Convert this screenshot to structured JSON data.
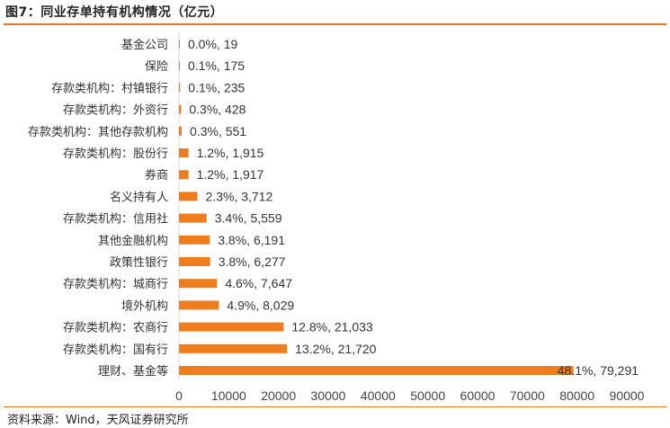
{
  "header": {
    "title": "图7：同业存单持有机构情况（亿元）"
  },
  "footer": {
    "source": "资料来源：Wind，天风证券研究所"
  },
  "chart_data": {
    "type": "bar",
    "orientation": "horizontal",
    "title": "图7：同业存单持有机构情况（亿元）",
    "categories": [
      "基金公司",
      "保险",
      "存款类机构：村镇银行",
      "存款类机构：外资行",
      "存款类机构：其他存款机构",
      "存款类机构：股份行",
      "券商",
      "名义持有人",
      "存款类机构：信用社",
      "其他金融机构",
      "政策性银行",
      "存款类机构：城商行",
      "境外机构",
      "存款类机构：农商行",
      "存款类机构：国有行",
      "理财、基金等"
    ],
    "values": [
      19,
      175,
      235,
      428,
      551,
      1915,
      1917,
      3712,
      5559,
      6191,
      6277,
      7647,
      8029,
      21033,
      21720,
      79291
    ],
    "data_labels": [
      "0.0%, 19",
      "0.1%, 175",
      "0.1%, 235",
      "0.3%, 428",
      "0.3%, 551",
      "1.2%, 1,915",
      "1.2%, 1,917",
      "2.3%, 3,712",
      "3.4%, 5,559",
      "3.8%, 6,191",
      "3.8%, 6,277",
      "4.6%, 7,647",
      "4.9%, 8,029",
      "12.8%, 21,033",
      "13.2%, 21,720",
      "48.1%, 79,291"
    ],
    "xlim": [
      0,
      90000
    ],
    "xticks": [
      "0",
      "10000",
      "20000",
      "30000",
      "40000",
      "50000",
      "60000",
      "70000",
      "80000",
      "90000"
    ],
    "xtick_values": [
      0,
      10000,
      20000,
      30000,
      40000,
      50000,
      60000,
      70000,
      80000,
      90000
    ],
    "bar_color": "#f07d1d",
    "grid": false,
    "legend": "none"
  }
}
